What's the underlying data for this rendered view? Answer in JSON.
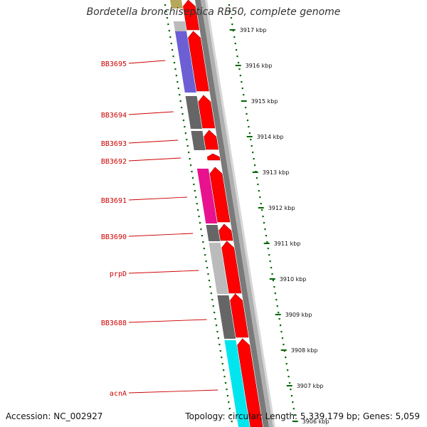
{
  "title": "Bordetella bronchiseptica RB50, complete genome",
  "footer": {
    "accession": "Accession: NC_002927",
    "summary": "Topology: circular; Length: 5,339,179 bp; Genes: 5,059"
  },
  "ruler": {
    "ticks": [
      "3917 kbp",
      "3916 kbp",
      "3915 kbp",
      "3914 kbp",
      "3913 kbp",
      "3912 kbp",
      "3911 kbp",
      "3910 kbp",
      "3909 kbp",
      "3908 kbp",
      "3907 kbp",
      "3906 kbp"
    ]
  },
  "gene_labels": [
    "BB3695",
    "BB3694",
    "BB3693",
    "BB3692",
    "BB3691",
    "BB3690",
    "prpD",
    "BB3688",
    "acnA"
  ],
  "colors": {
    "gene_arrow": "#ff0000",
    "label": "#cc0000",
    "tick": "#006600",
    "backbone": "#888888",
    "cog_blue": "#6b5fd3",
    "cog_gray": "#666666",
    "cog_lightgray": "#bbbbbb",
    "cog_magenta": "#e8128f",
    "cog_cyan": "#00e5ee",
    "cog_olive": "#b5a85a"
  }
}
